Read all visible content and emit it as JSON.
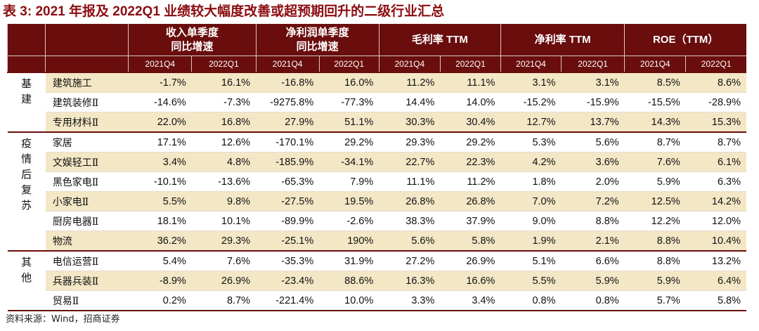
{
  "title": "表 3:  2021 年报及 2022Q1 业绩较大幅度改善或超预期回升的二级行业汇总",
  "headers": {
    "groups": [
      {
        "line1": "收入单季度",
        "line2": "同比增速"
      },
      {
        "line1": "净利润单季度",
        "line2": "同比增速"
      },
      {
        "line1": "毛利率 TTM",
        "line2": ""
      },
      {
        "line1": "净利率 TTM",
        "line2": ""
      },
      {
        "line1": "ROE（TTM）",
        "line2": ""
      }
    ],
    "periods": [
      "2021Q4",
      "2022Q1",
      "2021Q4",
      "2022Q1",
      "2021Q4",
      "2022Q1",
      "2021Q4",
      "2022Q1",
      "2021Q4",
      "2022Q1"
    ]
  },
  "groups": [
    {
      "label": [
        "基",
        "建"
      ],
      "rows": [
        {
          "name": "建筑施工",
          "values": [
            "-1.7%",
            "16.1%",
            "-16.8%",
            "16.0%",
            "11.2%",
            "11.1%",
            "3.1%",
            "3.1%",
            "8.5%",
            "8.6%"
          ]
        },
        {
          "name": "建筑装修Ⅱ",
          "values": [
            "-14.6%",
            "-7.3%",
            "-9275.8%",
            "-77.3%",
            "14.4%",
            "14.0%",
            "-15.2%",
            "-15.9%",
            "-15.5%",
            "-28.9%"
          ]
        },
        {
          "name": "专用材料Ⅱ",
          "values": [
            "22.0%",
            "16.8%",
            "27.9%",
            "51.1%",
            "30.3%",
            "30.4%",
            "12.7%",
            "13.7%",
            "14.3%",
            "15.3%"
          ]
        }
      ]
    },
    {
      "label": [
        "疫",
        "情",
        "后",
        "复",
        "苏"
      ],
      "rows": [
        {
          "name": "家居",
          "values": [
            "17.1%",
            "12.6%",
            "-170.1%",
            "29.2%",
            "29.3%",
            "29.2%",
            "5.3%",
            "5.6%",
            "8.7%",
            "8.7%"
          ]
        },
        {
          "name": "文娱轻工Ⅱ",
          "values": [
            "3.4%",
            "4.8%",
            "-185.9%",
            "-34.1%",
            "22.7%",
            "22.3%",
            "4.2%",
            "3.6%",
            "7.6%",
            "6.1%"
          ]
        },
        {
          "name": "黑色家电Ⅱ",
          "values": [
            "-10.1%",
            "-13.6%",
            "-65.3%",
            "7.9%",
            "11.1%",
            "11.2%",
            "1.8%",
            "2.0%",
            "5.9%",
            "6.3%"
          ]
        },
        {
          "name": "小家电Ⅱ",
          "values": [
            "5.5%",
            "9.8%",
            "-27.5%",
            "19.5%",
            "26.8%",
            "26.8%",
            "7.0%",
            "7.2%",
            "12.5%",
            "14.2%"
          ]
        },
        {
          "name": "厨房电器Ⅱ",
          "values": [
            "18.1%",
            "10.1%",
            "-89.9%",
            "-2.6%",
            "38.3%",
            "37.9%",
            "9.0%",
            "8.8%",
            "12.2%",
            "12.0%"
          ]
        },
        {
          "name": "物流",
          "values": [
            "36.2%",
            "29.3%",
            "-25.1%",
            "190%",
            "5.6%",
            "5.8%",
            "1.9%",
            "2.1%",
            "8.8%",
            "10.4%"
          ]
        }
      ]
    },
    {
      "label": [
        "其",
        "他"
      ],
      "rows": [
        {
          "name": "电信运营Ⅱ",
          "values": [
            "5.4%",
            "7.6%",
            "-35.3%",
            "31.9%",
            "27.2%",
            "26.9%",
            "5.1%",
            "6.6%",
            "8.8%",
            "13.2%"
          ]
        },
        {
          "name": "兵器兵装Ⅱ",
          "values": [
            "-8.9%",
            "26.9%",
            "-23.4%",
            "88.6%",
            "16.3%",
            "16.6%",
            "5.5%",
            "5.9%",
            "5.9%",
            "6.4%"
          ]
        },
        {
          "name": "贸易Ⅱ",
          "values": [
            "0.2%",
            "8.7%",
            "-221.4%",
            "10.0%",
            "3.3%",
            "3.4%",
            "0.8%",
            "0.8%",
            "5.7%",
            "5.8%"
          ]
        }
      ]
    }
  ],
  "source": "资料来源：Wind，招商证券",
  "colors": {
    "header_bg": "#6a0d0d",
    "title": "#8b0d11",
    "shade": "#f3e7c6"
  }
}
